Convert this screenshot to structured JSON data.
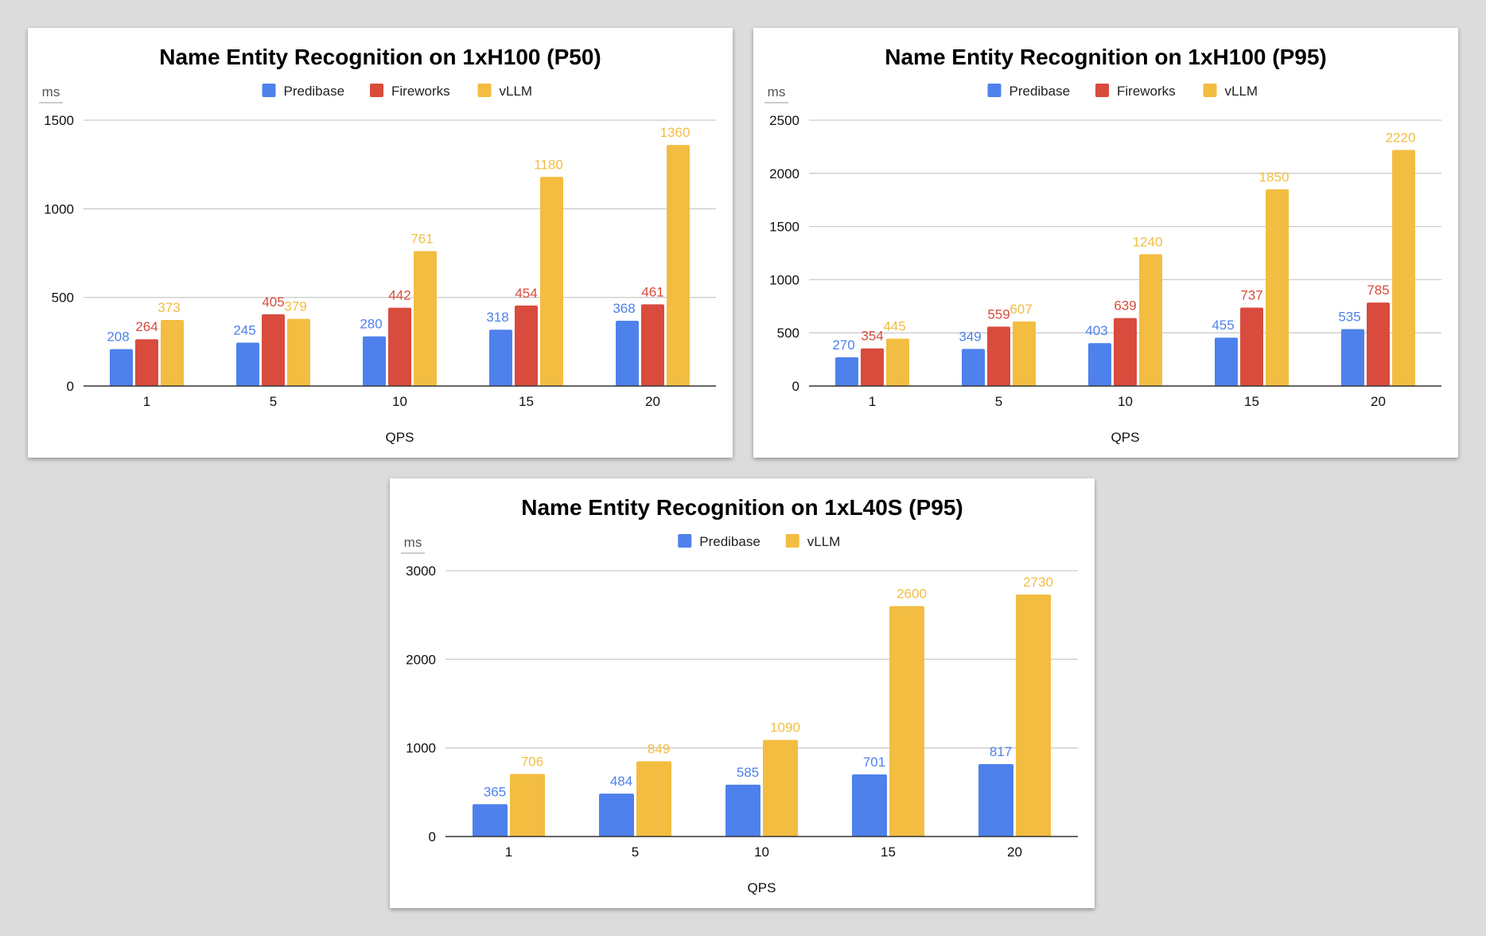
{
  "colors": {
    "Predibase": "#4e81ec",
    "Fireworks": "#d94b3d",
    "vLLM": "#f2bd41"
  },
  "chart_data": [
    {
      "type": "bar",
      "title": "Name Entity Recognition on 1xH100 (P50)",
      "xlabel": "QPS",
      "ylabel": "ms",
      "ylim": [
        0,
        1500
      ],
      "yticks": [
        0,
        500,
        1000,
        1500
      ],
      "grid": true,
      "legend": "top",
      "categories": [
        "1",
        "5",
        "10",
        "15",
        "20"
      ],
      "series": [
        {
          "name": "Predibase",
          "values": [
            208,
            245,
            280,
            318,
            368
          ]
        },
        {
          "name": "Fireworks",
          "values": [
            264,
            405,
            442,
            454,
            461
          ]
        },
        {
          "name": "vLLM",
          "values": [
            373,
            379,
            761,
            1180,
            1360
          ]
        }
      ]
    },
    {
      "type": "bar",
      "title": "Name Entity Recognition on 1xH100 (P95)",
      "xlabel": "QPS",
      "ylabel": "ms",
      "ylim": [
        0,
        2500
      ],
      "yticks": [
        0,
        500,
        1000,
        1500,
        2000,
        2500
      ],
      "grid": true,
      "legend": "top",
      "categories": [
        "1",
        "5",
        "10",
        "15",
        "20"
      ],
      "series": [
        {
          "name": "Predibase",
          "values": [
            270,
            349,
            403,
            455,
            535
          ]
        },
        {
          "name": "Fireworks",
          "values": [
            354,
            559,
            639,
            737,
            785
          ]
        },
        {
          "name": "vLLM",
          "values": [
            445,
            607,
            1240,
            1850,
            2220
          ]
        }
      ]
    },
    {
      "type": "bar",
      "title": "Name Entity Recognition on 1xL40S (P95)",
      "xlabel": "QPS",
      "ylabel": "ms",
      "ylim": [
        0,
        3000
      ],
      "yticks": [
        0,
        1000,
        2000,
        3000
      ],
      "grid": true,
      "legend": "top",
      "categories": [
        "1",
        "5",
        "10",
        "15",
        "20"
      ],
      "series": [
        {
          "name": "Predibase",
          "values": [
            365,
            484,
            585,
            701,
            817
          ]
        },
        {
          "name": "vLLM",
          "values": [
            706,
            849,
            1090,
            2600,
            2730
          ]
        }
      ]
    }
  ]
}
